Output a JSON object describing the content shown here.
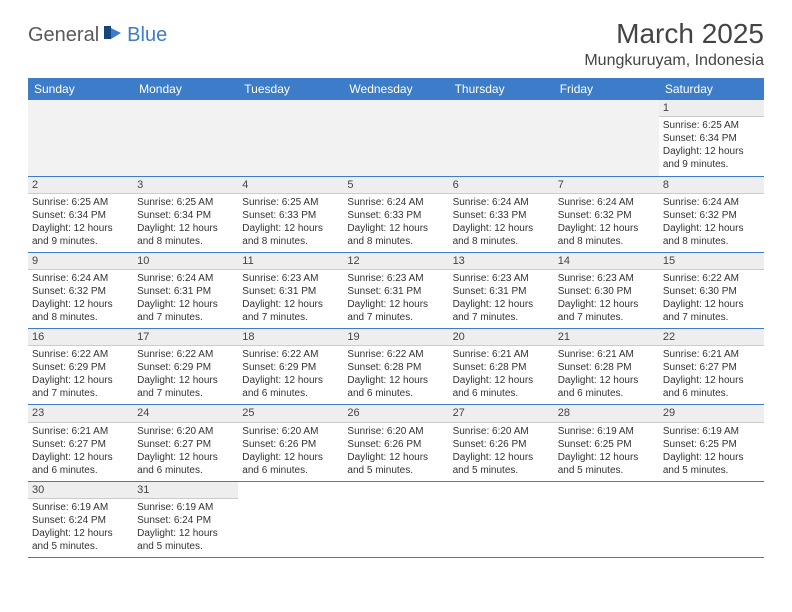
{
  "logo": {
    "text1": "General",
    "text2": "Blue"
  },
  "title": "March 2025",
  "location": "Mungkuruyam, Indonesia",
  "colors": {
    "header_bg": "#3d7cc9",
    "header_fg": "#ffffff",
    "daynum_bg": "#eeeeee",
    "rule": "#3d7cc9"
  },
  "days_of_week": [
    "Sunday",
    "Monday",
    "Tuesday",
    "Wednesday",
    "Thursday",
    "Friday",
    "Saturday"
  ],
  "weeks": [
    [
      null,
      null,
      null,
      null,
      null,
      null,
      {
        "n": "1",
        "sr": "Sunrise: 6:25 AM",
        "ss": "Sunset: 6:34 PM",
        "dl": "Daylight: 12 hours and 9 minutes."
      }
    ],
    [
      {
        "n": "2",
        "sr": "Sunrise: 6:25 AM",
        "ss": "Sunset: 6:34 PM",
        "dl": "Daylight: 12 hours and 9 minutes."
      },
      {
        "n": "3",
        "sr": "Sunrise: 6:25 AM",
        "ss": "Sunset: 6:34 PM",
        "dl": "Daylight: 12 hours and 8 minutes."
      },
      {
        "n": "4",
        "sr": "Sunrise: 6:25 AM",
        "ss": "Sunset: 6:33 PM",
        "dl": "Daylight: 12 hours and 8 minutes."
      },
      {
        "n": "5",
        "sr": "Sunrise: 6:24 AM",
        "ss": "Sunset: 6:33 PM",
        "dl": "Daylight: 12 hours and 8 minutes."
      },
      {
        "n": "6",
        "sr": "Sunrise: 6:24 AM",
        "ss": "Sunset: 6:33 PM",
        "dl": "Daylight: 12 hours and 8 minutes."
      },
      {
        "n": "7",
        "sr": "Sunrise: 6:24 AM",
        "ss": "Sunset: 6:32 PM",
        "dl": "Daylight: 12 hours and 8 minutes."
      },
      {
        "n": "8",
        "sr": "Sunrise: 6:24 AM",
        "ss": "Sunset: 6:32 PM",
        "dl": "Daylight: 12 hours and 8 minutes."
      }
    ],
    [
      {
        "n": "9",
        "sr": "Sunrise: 6:24 AM",
        "ss": "Sunset: 6:32 PM",
        "dl": "Daylight: 12 hours and 8 minutes."
      },
      {
        "n": "10",
        "sr": "Sunrise: 6:24 AM",
        "ss": "Sunset: 6:31 PM",
        "dl": "Daylight: 12 hours and 7 minutes."
      },
      {
        "n": "11",
        "sr": "Sunrise: 6:23 AM",
        "ss": "Sunset: 6:31 PM",
        "dl": "Daylight: 12 hours and 7 minutes."
      },
      {
        "n": "12",
        "sr": "Sunrise: 6:23 AM",
        "ss": "Sunset: 6:31 PM",
        "dl": "Daylight: 12 hours and 7 minutes."
      },
      {
        "n": "13",
        "sr": "Sunrise: 6:23 AM",
        "ss": "Sunset: 6:31 PM",
        "dl": "Daylight: 12 hours and 7 minutes."
      },
      {
        "n": "14",
        "sr": "Sunrise: 6:23 AM",
        "ss": "Sunset: 6:30 PM",
        "dl": "Daylight: 12 hours and 7 minutes."
      },
      {
        "n": "15",
        "sr": "Sunrise: 6:22 AM",
        "ss": "Sunset: 6:30 PM",
        "dl": "Daylight: 12 hours and 7 minutes."
      }
    ],
    [
      {
        "n": "16",
        "sr": "Sunrise: 6:22 AM",
        "ss": "Sunset: 6:29 PM",
        "dl": "Daylight: 12 hours and 7 minutes."
      },
      {
        "n": "17",
        "sr": "Sunrise: 6:22 AM",
        "ss": "Sunset: 6:29 PM",
        "dl": "Daylight: 12 hours and 7 minutes."
      },
      {
        "n": "18",
        "sr": "Sunrise: 6:22 AM",
        "ss": "Sunset: 6:29 PM",
        "dl": "Daylight: 12 hours and 6 minutes."
      },
      {
        "n": "19",
        "sr": "Sunrise: 6:22 AM",
        "ss": "Sunset: 6:28 PM",
        "dl": "Daylight: 12 hours and 6 minutes."
      },
      {
        "n": "20",
        "sr": "Sunrise: 6:21 AM",
        "ss": "Sunset: 6:28 PM",
        "dl": "Daylight: 12 hours and 6 minutes."
      },
      {
        "n": "21",
        "sr": "Sunrise: 6:21 AM",
        "ss": "Sunset: 6:28 PM",
        "dl": "Daylight: 12 hours and 6 minutes."
      },
      {
        "n": "22",
        "sr": "Sunrise: 6:21 AM",
        "ss": "Sunset: 6:27 PM",
        "dl": "Daylight: 12 hours and 6 minutes."
      }
    ],
    [
      {
        "n": "23",
        "sr": "Sunrise: 6:21 AM",
        "ss": "Sunset: 6:27 PM",
        "dl": "Daylight: 12 hours and 6 minutes."
      },
      {
        "n": "24",
        "sr": "Sunrise: 6:20 AM",
        "ss": "Sunset: 6:27 PM",
        "dl": "Daylight: 12 hours and 6 minutes."
      },
      {
        "n": "25",
        "sr": "Sunrise: 6:20 AM",
        "ss": "Sunset: 6:26 PM",
        "dl": "Daylight: 12 hours and 6 minutes."
      },
      {
        "n": "26",
        "sr": "Sunrise: 6:20 AM",
        "ss": "Sunset: 6:26 PM",
        "dl": "Daylight: 12 hours and 5 minutes."
      },
      {
        "n": "27",
        "sr": "Sunrise: 6:20 AM",
        "ss": "Sunset: 6:26 PM",
        "dl": "Daylight: 12 hours and 5 minutes."
      },
      {
        "n": "28",
        "sr": "Sunrise: 6:19 AM",
        "ss": "Sunset: 6:25 PM",
        "dl": "Daylight: 12 hours and 5 minutes."
      },
      {
        "n": "29",
        "sr": "Sunrise: 6:19 AM",
        "ss": "Sunset: 6:25 PM",
        "dl": "Daylight: 12 hours and 5 minutes."
      }
    ],
    [
      {
        "n": "30",
        "sr": "Sunrise: 6:19 AM",
        "ss": "Sunset: 6:24 PM",
        "dl": "Daylight: 12 hours and 5 minutes."
      },
      {
        "n": "31",
        "sr": "Sunrise: 6:19 AM",
        "ss": "Sunset: 6:24 PM",
        "dl": "Daylight: 12 hours and 5 minutes."
      },
      null,
      null,
      null,
      null,
      null
    ]
  ]
}
